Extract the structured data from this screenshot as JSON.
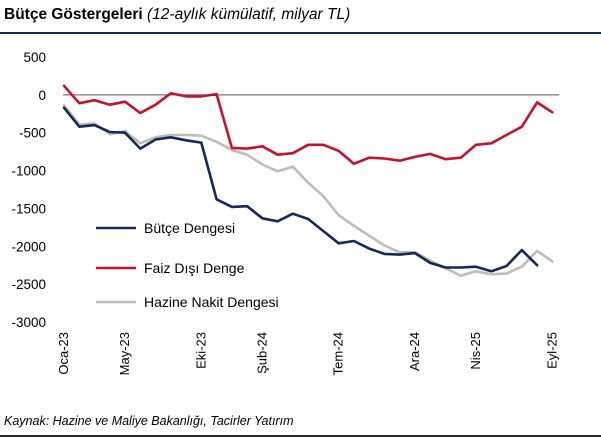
{
  "title": {
    "bold": "Bütçe Göstergeleri",
    "italic": "(12-aylık kümülatif, milyar TL)"
  },
  "source": "Kaynak: Hazine ve Maliye Bakanlığı, Tacirler Yatırım",
  "chart_data": {
    "type": "line",
    "title": "Bütçe Göstergeleri",
    "subtitle": "(12-aylık kümülatif, milyar TL)",
    "ylim": [
      -3000,
      500
    ],
    "yticks": [
      500,
      0,
      -500,
      -1000,
      -1500,
      -2000,
      -2500,
      -3000
    ],
    "ytick_labels": [
      "500",
      "0",
      "-500",
      "-1000",
      "-1500",
      "-2000",
      "-2500",
      "-3000"
    ],
    "x": [
      "Oca-23",
      "Şub-23",
      "Mar-23",
      "Nis-23",
      "May-23",
      "Haz-23",
      "Tem-23",
      "Ağu-23",
      "Eyl-23",
      "Eki-23",
      "Kas-23",
      "Ara-23",
      "Oca-24",
      "Şub-24",
      "Mar-24",
      "Nis-24",
      "May-24",
      "Haz-24",
      "Tem-24",
      "Ağu-24",
      "Eyl-24",
      "Eki-24",
      "Kas-24",
      "Ara-24",
      "Oca-25",
      "Şub-25",
      "Mar-25",
      "Nis-25",
      "May-25",
      "Haz-25",
      "Tem-25",
      "Ağu-25",
      "Eyl-25"
    ],
    "xtick_labels": [
      "Oca-23",
      "May-23",
      "Eki-23",
      "Şub-24",
      "Tem-24",
      "Ara-24",
      "Nis-25",
      "Eyl-25"
    ],
    "grid": false,
    "legend_position": "bottom-left",
    "series": [
      {
        "name": "Bütçe Dengesi",
        "color": "#14285a",
        "values": [
          -170,
          -420,
          -400,
          -490,
          -500,
          -710,
          -590,
          -560,
          -600,
          -630,
          -1380,
          -1480,
          -1470,
          -1630,
          -1670,
          -1570,
          -1640,
          -1800,
          -1960,
          -1930,
          -2030,
          -2100,
          -2110,
          -2090,
          -2220,
          -2280,
          -2280,
          -2270,
          -2330,
          -2260,
          -2050,
          -2250,
          null
        ]
      },
      {
        "name": "Faiz Dışı Denge",
        "color": "#c8102e",
        "values": [
          120,
          -110,
          -70,
          -130,
          -90,
          -240,
          -130,
          20,
          -20,
          -20,
          10,
          -700,
          -710,
          -680,
          -790,
          -770,
          -660,
          -660,
          -740,
          -910,
          -830,
          -840,
          -870,
          -820,
          -780,
          -850,
          -830,
          -660,
          -640,
          -530,
          -420,
          -100,
          -230
        ]
      },
      {
        "name": "Hazine Nakit Dengesi",
        "color": "#bdbcb7",
        "values": [
          -140,
          -390,
          -380,
          -520,
          -480,
          -640,
          -560,
          -530,
          -530,
          -540,
          -620,
          -730,
          -790,
          -920,
          -1010,
          -950,
          -1160,
          -1340,
          -1590,
          -1730,
          -1860,
          -1990,
          -2080,
          -2080,
          -2190,
          -2290,
          -2390,
          -2330,
          -2370,
          -2360,
          -2270,
          -2060,
          -2200
        ]
      }
    ]
  }
}
